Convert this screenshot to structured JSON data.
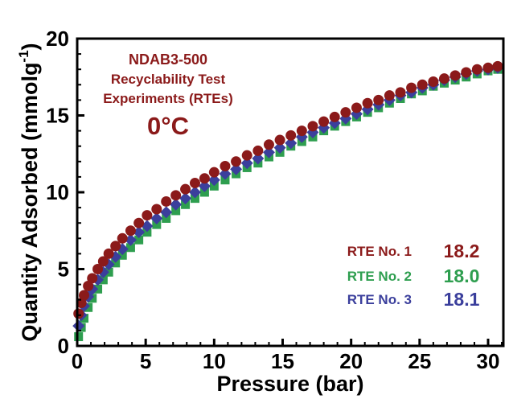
{
  "chart_data": {
    "type": "scatter",
    "title": "",
    "xlabel": "Pressure (bar)",
    "ylabel": "Quantity Adsorbed (mmolg-1)",
    "ylabel_main": "Quantity Adsorbed (mmolg",
    "ylabel_sup": "-1",
    "ylabel_close": ")",
    "xlim": [
      0,
      32
    ],
    "ylim": [
      0,
      20
    ],
    "xticks": [
      "0",
      "5",
      "10",
      "15",
      "20",
      "25",
      "30"
    ],
    "yticks": [
      "0",
      "5",
      "10",
      "15",
      "20"
    ],
    "grid": false,
    "annotation": {
      "line1": "NDAB3-500",
      "line2": "Recyclability Test",
      "line3": "Experiments (RTEs)",
      "temperature": "0°C"
    },
    "legend_position": "bottom-right",
    "series": [
      {
        "name": "RTE No. 1",
        "value_label": "18.2",
        "marker": "circle",
        "color": "#8b1a1a",
        "x": [
          0.1,
          0.3,
          0.5,
          0.8,
          1.1,
          1.5,
          1.9,
          2.3,
          2.8,
          3.3,
          3.9,
          4.5,
          5.1,
          5.8,
          6.5,
          7.2,
          7.9,
          8.6,
          9.3,
          10.0,
          10.8,
          11.6,
          12.4,
          13.2,
          14.0,
          14.8,
          15.6,
          16.4,
          17.2,
          18.0,
          18.8,
          19.6,
          20.4,
          21.2,
          22.0,
          22.8,
          23.6,
          24.4,
          25.2,
          26.0,
          26.8,
          27.6,
          28.4,
          29.2,
          30.0,
          30.7
        ],
        "y": [
          2.1,
          2.8,
          3.3,
          3.9,
          4.4,
          5.0,
          5.5,
          6.0,
          6.5,
          7.0,
          7.5,
          8.0,
          8.5,
          8.9,
          9.4,
          9.8,
          10.2,
          10.6,
          10.9,
          11.3,
          11.7,
          12.0,
          12.4,
          12.7,
          13.1,
          13.4,
          13.7,
          14.0,
          14.3,
          14.6,
          14.9,
          15.2,
          15.5,
          15.8,
          16.0,
          16.3,
          16.5,
          16.8,
          17.0,
          17.2,
          17.4,
          17.6,
          17.8,
          18.0,
          18.1,
          18.2
        ]
      },
      {
        "name": "RTE No. 2",
        "value_label": "18.0",
        "marker": "square",
        "color": "#2e9e4f",
        "x": [
          0.1,
          0.3,
          0.5,
          0.8,
          1.1,
          1.5,
          1.9,
          2.3,
          2.8,
          3.3,
          3.9,
          4.5,
          5.1,
          5.8,
          6.5,
          7.2,
          7.9,
          8.6,
          9.3,
          10.0,
          10.8,
          11.6,
          12.4,
          13.2,
          14.0,
          14.8,
          15.6,
          16.4,
          17.2,
          18.0,
          18.8,
          19.6,
          20.4,
          21.2,
          22.0,
          22.8,
          23.6,
          24.4,
          25.2,
          26.0,
          26.8,
          27.6,
          28.4,
          29.2,
          30.0,
          30.7
        ],
        "y": [
          0.6,
          1.2,
          1.8,
          2.5,
          3.1,
          3.7,
          4.3,
          4.8,
          5.4,
          5.9,
          6.4,
          6.9,
          7.4,
          7.9,
          8.3,
          8.8,
          9.2,
          9.6,
          10.0,
          10.4,
          10.8,
          11.2,
          11.6,
          11.9,
          12.3,
          12.6,
          13.0,
          13.3,
          13.6,
          14.0,
          14.3,
          14.6,
          14.9,
          15.2,
          15.5,
          15.8,
          16.1,
          16.4,
          16.6,
          16.9,
          17.1,
          17.3,
          17.5,
          17.7,
          17.9,
          18.0
        ]
      },
      {
        "name": "RTE No. 3",
        "value_label": "18.1",
        "marker": "diamond",
        "color": "#3b3f9c",
        "x": [
          0.1,
          0.3,
          0.5,
          0.8,
          1.1,
          1.5,
          1.9,
          2.3,
          2.8,
          3.3,
          3.9,
          4.5,
          5.1,
          5.8,
          6.5,
          7.2,
          7.9,
          8.6,
          9.3,
          10.0,
          10.8,
          11.6,
          12.4,
          13.2,
          14.0,
          14.8,
          15.6,
          16.4,
          17.2,
          18.0,
          18.8,
          19.6,
          20.4,
          21.2,
          22.0,
          22.8,
          23.6,
          24.4,
          25.2,
          26.0,
          26.8,
          27.6,
          28.4,
          29.2,
          30.0,
          30.7
        ],
        "y": [
          1.3,
          2.0,
          2.6,
          3.2,
          3.7,
          4.3,
          4.8,
          5.3,
          5.8,
          6.3,
          6.9,
          7.4,
          7.8,
          8.3,
          8.7,
          9.2,
          9.6,
          10.0,
          10.4,
          10.8,
          11.2,
          11.5,
          11.9,
          12.2,
          12.6,
          12.9,
          13.2,
          13.6,
          13.9,
          14.2,
          14.5,
          14.8,
          15.1,
          15.4,
          15.7,
          16.0,
          16.3,
          16.5,
          16.8,
          17.0,
          17.3,
          17.5,
          17.7,
          17.9,
          18.0,
          18.1
        ]
      }
    ]
  }
}
